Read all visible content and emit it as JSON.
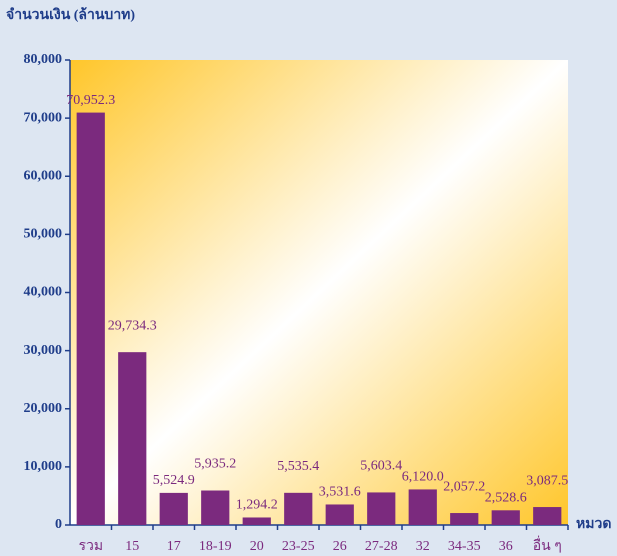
{
  "chart_data": {
    "type": "bar",
    "y_axis_label": "จำนวนเงิน (ล้านบาท)",
    "x_axis_label": "หมวด",
    "categories": [
      "รวม",
      "15",
      "17",
      "18-19",
      "20",
      "23-25",
      "26",
      "27-28",
      "32",
      "34-35",
      "36",
      "อื่น ๆ"
    ],
    "values": [
      70952.3,
      29734.3,
      5524.9,
      5935.2,
      1294.2,
      5535.4,
      3531.6,
      5603.4,
      6120.0,
      2057.2,
      2528.6,
      3087.5
    ],
    "value_labels": [
      "70,952.3",
      "29,734.3",
      "5,524.9",
      "5,935.2",
      "1,294.2",
      "5,535.4",
      "3,531.6",
      "5,603.4",
      "6,120.0",
      "2,057.2",
      "2,528.6",
      "3,087.5"
    ],
    "color": "#7b2a7e",
    "ylim": [
      0,
      80000
    ],
    "yticks": [
      0,
      {
        "value": 10000,
        "label": "10,000"
      },
      {
        "value": 20000,
        "label": "20,000"
      },
      {
        "value": 30000,
        "label": "30,000"
      },
      {
        "value": 40000,
        "label": "40,000"
      },
      {
        "value": 50000,
        "label": "50,000"
      },
      {
        "value": 60000,
        "label": "60,000"
      },
      {
        "value": 70000,
        "label": "70,000"
      },
      {
        "value": 80000,
        "label": "80,000"
      }
    ]
  }
}
